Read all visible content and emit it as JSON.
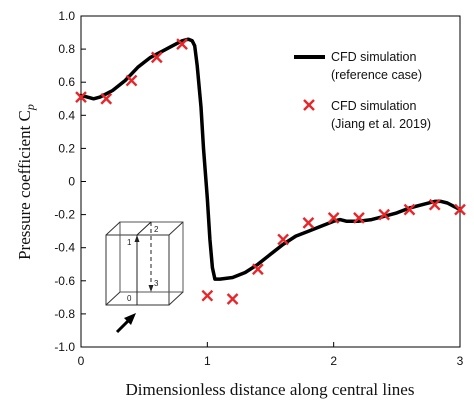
{
  "chart_data": {
    "type": "line",
    "xlabel": "Dimensionless distance along central lines",
    "ylabel": "Pressure coefficient C",
    "ylabel_subscript": "p",
    "xlim": [
      0,
      3
    ],
    "ylim": [
      -1.0,
      1.0
    ],
    "x_ticks": [
      0,
      1,
      2,
      3
    ],
    "y_ticks": [
      -1.0,
      -0.8,
      -0.6,
      -0.4,
      -0.2,
      0,
      0.2,
      0.4,
      0.6,
      0.8,
      1.0
    ],
    "x_tick_labels": [
      "0",
      "1",
      "2",
      "3"
    ],
    "y_tick_labels": [
      "-1.0",
      "-0.8",
      "-0.6",
      "-0.4",
      "-0.2",
      "0",
      "0.2",
      "0.4",
      "0.6",
      "0.8",
      "1.0"
    ],
    "grid": false,
    "legend_position": "top-right",
    "series": [
      {
        "name": "CFD simulation",
        "name_line2": "(reference case)",
        "style": "line",
        "color": "#000000",
        "x": [
          0,
          0.05,
          0.1,
          0.15,
          0.2,
          0.25,
          0.3,
          0.35,
          0.4,
          0.45,
          0.5,
          0.55,
          0.6,
          0.65,
          0.7,
          0.75,
          0.8,
          0.85,
          0.88,
          0.9,
          0.92,
          0.95,
          0.97,
          1.0,
          1.02,
          1.04,
          1.06,
          1.1,
          1.2,
          1.3,
          1.4,
          1.5,
          1.6,
          1.7,
          1.8,
          1.9,
          2.0,
          2.05,
          2.1,
          2.2,
          2.3,
          2.4,
          2.5,
          2.6,
          2.7,
          2.8,
          2.85,
          2.9,
          2.95,
          3.0
        ],
        "y": [
          0.52,
          0.51,
          0.5,
          0.51,
          0.53,
          0.55,
          0.58,
          0.61,
          0.65,
          0.69,
          0.72,
          0.75,
          0.77,
          0.79,
          0.81,
          0.83,
          0.85,
          0.86,
          0.85,
          0.82,
          0.7,
          0.45,
          0.2,
          -0.1,
          -0.35,
          -0.52,
          -0.59,
          -0.59,
          -0.58,
          -0.55,
          -0.5,
          -0.44,
          -0.38,
          -0.33,
          -0.3,
          -0.27,
          -0.24,
          -0.23,
          -0.24,
          -0.24,
          -0.23,
          -0.21,
          -0.19,
          -0.16,
          -0.14,
          -0.12,
          -0.12,
          -0.13,
          -0.15,
          -0.17
        ]
      },
      {
        "name": "CFD simulation",
        "name_line2": "(Jiang et al. 2019)",
        "style": "marker-x",
        "color": "#e8262a",
        "x": [
          0,
          0.2,
          0.4,
          0.6,
          0.8,
          1.0,
          1.2,
          1.4,
          1.6,
          1.8,
          2.0,
          2.2,
          2.4,
          2.6,
          2.8,
          3.0
        ],
        "y": [
          0.51,
          0.5,
          0.61,
          0.75,
          0.83,
          -0.69,
          -0.71,
          -0.53,
          -0.35,
          -0.25,
          -0.22,
          -0.22,
          -0.2,
          -0.17,
          -0.14,
          -0.17
        ]
      }
    ]
  },
  "inset": {
    "labels": [
      "0",
      "1",
      "2",
      "3"
    ]
  }
}
